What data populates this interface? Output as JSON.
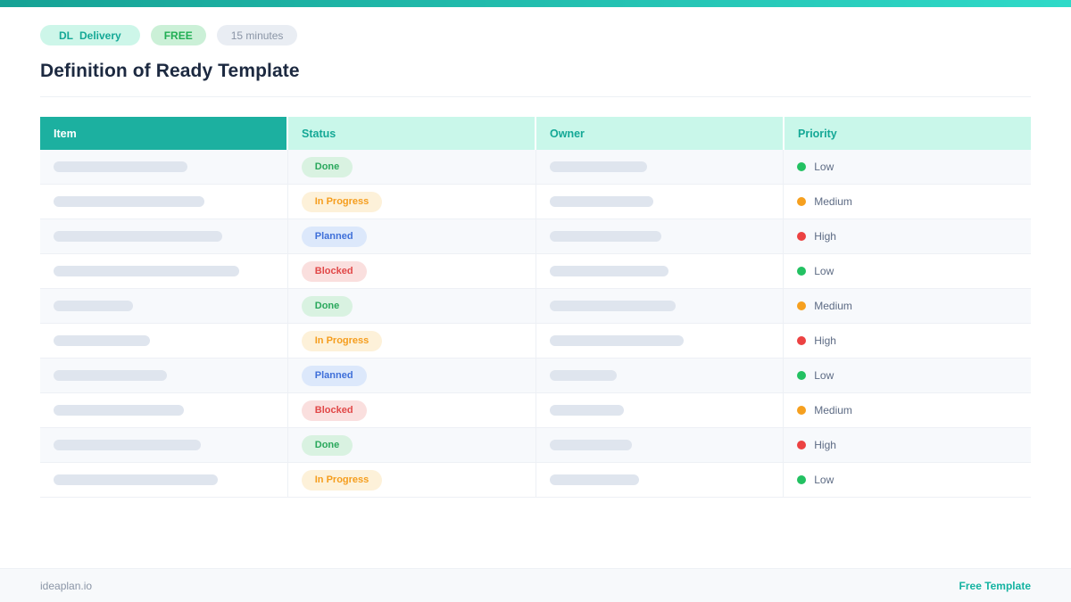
{
  "colors": {
    "topbar-left": "#16a295",
    "topbar-right": "#2fdac8",
    "teal": "#14a896",
    "header-teal": "#1cb0a0",
    "mint": "#c9f7ea",
    "mint-badge": "#cdf6e9",
    "green": "#21ae54",
    "green-bg": "#cbf0d7",
    "gray-badge-bg": "#e9edf3",
    "gray-text": "#8a95a6",
    "navy": "#1c2940",
    "bar": "#dfe5ee",
    "row-alt": "#f7f9fc",
    "border": "#edf0f5",
    "done-bg": "#d9f2e1",
    "done-text": "#2aa85c",
    "progress-bg": "#fdf1d9",
    "progress-text": "#f59d1d",
    "planned-bg": "#dce8fb",
    "planned-text": "#3e6fd9",
    "blocked-bg": "#fadfde",
    "blocked-text": "#e14747",
    "low": "#23c162",
    "medium": "#f6a01f",
    "high": "#ec4242",
    "priority-text": "#5d6b84",
    "footer-bg": "#f7f9fb",
    "footer-link": "#14b3a1"
  },
  "header": {
    "badges": [
      {
        "prefix": "DL",
        "label": "Delivery"
      },
      {
        "label": "FREE"
      },
      {
        "label": "15 minutes"
      }
    ],
    "title": "Definition of Ready Template"
  },
  "table": {
    "columns": [
      "Item",
      "Status",
      "Owner",
      "Priority"
    ],
    "rows": [
      {
        "status": "Done",
        "status_key": "done",
        "priority": "Low",
        "priority_color_key": "low",
        "item_bar_width": 150,
        "owner_bar_width": 109
      },
      {
        "status": "In Progress",
        "status_key": "in-progress",
        "priority": "Medium",
        "priority_color_key": "medium",
        "item_bar_width": 169,
        "owner_bar_width": 116
      },
      {
        "status": "Planned",
        "status_key": "planned",
        "priority": "High",
        "priority_color_key": "high",
        "item_bar_width": 189,
        "owner_bar_width": 125
      },
      {
        "status": "Blocked",
        "status_key": "blocked",
        "priority": "Low",
        "priority_color_key": "low",
        "item_bar_width": 208,
        "owner_bar_width": 133
      },
      {
        "status": "Done",
        "status_key": "done",
        "priority": "Medium",
        "priority_color_key": "medium",
        "item_bar_width": 89,
        "owner_bar_width": 141
      },
      {
        "status": "In Progress",
        "status_key": "in-progress",
        "priority": "High",
        "priority_color_key": "high",
        "item_bar_width": 108,
        "owner_bar_width": 150
      },
      {
        "status": "Planned",
        "status_key": "planned",
        "priority": "Low",
        "priority_color_key": "low",
        "item_bar_width": 127,
        "owner_bar_width": 75
      },
      {
        "status": "Blocked",
        "status_key": "blocked",
        "priority": "Medium",
        "priority_color_key": "medium",
        "item_bar_width": 146,
        "owner_bar_width": 83
      },
      {
        "status": "Done",
        "status_key": "done",
        "priority": "High",
        "priority_color_key": "high",
        "item_bar_width": 165,
        "owner_bar_width": 92
      },
      {
        "status": "In Progress",
        "status_key": "in-progress",
        "priority": "Low",
        "priority_color_key": "low",
        "item_bar_width": 184,
        "owner_bar_width": 100
      }
    ]
  },
  "footer": {
    "site": "ideaplan.io",
    "link": "Free Template"
  }
}
